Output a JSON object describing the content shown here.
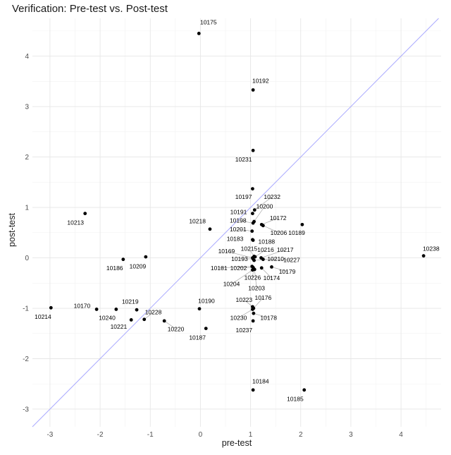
{
  "chart_data": {
    "type": "scatter",
    "title": "Verification: Pre-test vs. Post-test",
    "xlabel": "pre-test",
    "ylabel": "post-test",
    "xlim": [
      -3.35,
      4.8
    ],
    "ylim": [
      -3.35,
      4.75
    ],
    "xticks": [
      -3,
      -2,
      -1,
      0,
      1,
      2,
      3,
      4
    ],
    "yticks": [
      -3,
      -2,
      -1,
      0,
      1,
      2,
      3,
      4
    ],
    "grid": true,
    "reference_line": {
      "type": "identity",
      "color": "#aaaaff"
    },
    "point_color": "#000000",
    "points": [
      {
        "label": "10175",
        "x": -0.03,
        "y": 4.45
      },
      {
        "label": "10192",
        "x": 1.05,
        "y": 3.33
      },
      {
        "label": "10231",
        "x": 1.05,
        "y": 2.13
      },
      {
        "label": "10197",
        "x": 1.04,
        "y": 1.37
      },
      {
        "label": "10232",
        "x": 1.08,
        "y": 0.95
      },
      {
        "label": "10191",
        "x": 1.04,
        "y": 0.88
      },
      {
        "label": "10213",
        "x": -2.3,
        "y": 0.88
      },
      {
        "label": "10200",
        "x": 1.07,
        "y": 0.72
      },
      {
        "label": "10198",
        "x": 1.05,
        "y": 0.69
      },
      {
        "label": "10189",
        "x": 2.03,
        "y": 0.66
      },
      {
        "label": "10172",
        "x": 1.22,
        "y": 0.66
      },
      {
        "label": "10206",
        "x": 1.25,
        "y": 0.64
      },
      {
        "label": "10218",
        "x": 0.19,
        "y": 0.57
      },
      {
        "label": "10201",
        "x": 1.03,
        "y": 0.53
      },
      {
        "label": "10183",
        "x": 1.04,
        "y": 0.36
      },
      {
        "label": "10188",
        "x": 1.05,
        "y": 0.35
      },
      {
        "label": "10238",
        "x": 4.45,
        "y": 0.04
      },
      {
        "label": "10209",
        "x": -1.09,
        "y": 0.02
      },
      {
        "label": "10186",
        "x": -1.54,
        "y": -0.03
      },
      {
        "label": "10215",
        "x": 1.07,
        "y": 0.03
      },
      {
        "label": "10216",
        "x": 1.09,
        "y": 0.02
      },
      {
        "label": "10217",
        "x": 1.21,
        "y": 0.0
      },
      {
        "label": "10169",
        "x": 1.04,
        "y": 0.0
      },
      {
        "label": "10193",
        "x": 1.05,
        "y": -0.02
      },
      {
        "label": "10227",
        "x": 1.25,
        "y": -0.03
      },
      {
        "label": "10210",
        "x": 1.07,
        "y": -0.05
      },
      {
        "label": "10181",
        "x": 1.03,
        "y": -0.17
      },
      {
        "label": "10202",
        "x": 1.05,
        "y": -0.19
      },
      {
        "label": "10179",
        "x": 1.42,
        "y": -0.18
      },
      {
        "label": "10174",
        "x": 1.22,
        "y": -0.2
      },
      {
        "label": "10226",
        "x": 1.06,
        "y": -0.21
      },
      {
        "label": "10203",
        "x": 1.08,
        "y": -0.23
      },
      {
        "label": "10204",
        "x": 1.04,
        "y": -0.24
      },
      {
        "label": "10214",
        "x": -2.98,
        "y": -0.99
      },
      {
        "label": "10170",
        "x": -2.07,
        "y": -1.02
      },
      {
        "label": "10240",
        "x": -1.68,
        "y": -1.02
      },
      {
        "label": "10219",
        "x": -1.27,
        "y": -1.03
      },
      {
        "label": "10190",
        "x": -0.02,
        "y": -1.01
      },
      {
        "label": "10223",
        "x": 1.04,
        "y": -0.97
      },
      {
        "label": "10176",
        "x": 1.06,
        "y": -1.0
      },
      {
        "label": "10230",
        "x": 1.04,
        "y": -1.02
      },
      {
        "label": "10178",
        "x": 1.06,
        "y": -1.1
      },
      {
        "label": "10228",
        "x": -1.12,
        "y": -1.22
      },
      {
        "label": "10221",
        "x": -1.38,
        "y": -1.23
      },
      {
        "label": "10220",
        "x": -0.72,
        "y": -1.25
      },
      {
        "label": "10237",
        "x": 1.05,
        "y": -1.25
      },
      {
        "label": "10187",
        "x": 0.11,
        "y": -1.4
      },
      {
        "label": "10184",
        "x": 1.05,
        "y": -2.62
      },
      {
        "label": "10185",
        "x": 2.07,
        "y": -2.62
      }
    ],
    "point_labels": [
      {
        "label": "10175",
        "lx": 0.16,
        "ly": 4.67,
        "leader": false
      },
      {
        "label": "10192",
        "lx": 1.2,
        "ly": 3.51,
        "leader": false
      },
      {
        "label": "10231",
        "lx": 0.86,
        "ly": 1.95,
        "leader": false
      },
      {
        "label": "10197",
        "lx": 0.86,
        "ly": 1.21,
        "leader": false
      },
      {
        "label": "10232",
        "lx": 1.43,
        "ly": 1.21,
        "leader": true
      },
      {
        "label": "10200",
        "lx": 1.28,
        "ly": 1.02,
        "leader": true
      },
      {
        "label": "10191",
        "lx": 0.76,
        "ly": 0.91,
        "leader": false
      },
      {
        "label": "10172",
        "lx": 1.55,
        "ly": 0.79,
        "leader": true
      },
      {
        "label": "10198",
        "lx": 0.75,
        "ly": 0.74,
        "leader": true
      },
      {
        "label": "10218",
        "lx": -0.06,
        "ly": 0.73,
        "leader": false
      },
      {
        "label": "10213",
        "lx": -2.49,
        "ly": 0.7,
        "leader": false
      },
      {
        "label": "10201",
        "lx": 0.75,
        "ly": 0.57,
        "leader": true
      },
      {
        "label": "10206",
        "lx": 1.56,
        "ly": 0.5,
        "leader": true
      },
      {
        "label": "10189",
        "lx": 1.92,
        "ly": 0.5,
        "leader": false
      },
      {
        "label": "10183",
        "lx": 0.69,
        "ly": 0.38,
        "leader": false
      },
      {
        "label": "10188",
        "lx": 1.32,
        "ly": 0.32,
        "leader": false
      },
      {
        "label": "10238",
        "lx": 4.6,
        "ly": 0.18,
        "leader": false
      },
      {
        "label": "10215",
        "lx": 0.97,
        "ly": 0.18,
        "leader": true
      },
      {
        "label": "10216",
        "lx": 1.3,
        "ly": 0.16,
        "leader": true
      },
      {
        "label": "10217",
        "lx": 1.69,
        "ly": 0.16,
        "leader": true
      },
      {
        "label": "10169",
        "lx": 0.52,
        "ly": 0.13,
        "leader": true
      },
      {
        "label": "10193",
        "lx": 0.78,
        "ly": -0.02,
        "leader": true
      },
      {
        "label": "10210",
        "lx": 1.5,
        "ly": -0.02,
        "leader": true
      },
      {
        "label": "10227",
        "lx": 1.82,
        "ly": -0.04,
        "leader": true
      },
      {
        "label": "10209",
        "lx": -1.25,
        "ly": -0.17,
        "leader": false
      },
      {
        "label": "10186",
        "lx": -1.71,
        "ly": -0.2,
        "leader": false
      },
      {
        "label": "10181",
        "lx": 0.37,
        "ly": -0.2,
        "leader": true
      },
      {
        "label": "10202",
        "lx": 0.76,
        "ly": -0.2,
        "leader": true
      },
      {
        "label": "10179",
        "lx": 1.73,
        "ly": -0.27,
        "leader": true
      },
      {
        "label": "10226",
        "lx": 1.04,
        "ly": -0.39,
        "leader": true
      },
      {
        "label": "10174",
        "lx": 1.42,
        "ly": -0.4,
        "leader": true
      },
      {
        "label": "10204",
        "lx": 0.62,
        "ly": -0.52,
        "leader": true
      },
      {
        "label": "10203",
        "lx": 1.12,
        "ly": -0.6,
        "leader": true
      },
      {
        "label": "10223",
        "lx": 0.87,
        "ly": -0.83,
        "leader": true
      },
      {
        "label": "10176",
        "lx": 1.25,
        "ly": -0.79,
        "leader": true
      },
      {
        "label": "10219",
        "lx": -1.4,
        "ly": -0.87,
        "leader": false
      },
      {
        "label": "10190",
        "lx": 0.12,
        "ly": -0.85,
        "leader": false
      },
      {
        "label": "10170",
        "lx": -2.36,
        "ly": -0.95,
        "leader": false
      },
      {
        "label": "10228",
        "lx": -0.94,
        "ly": -1.08,
        "leader": true
      },
      {
        "label": "10214",
        "lx": -3.14,
        "ly": -1.17,
        "leader": false
      },
      {
        "label": "10240",
        "lx": -1.86,
        "ly": -1.19,
        "leader": false
      },
      {
        "label": "10230",
        "lx": 0.76,
        "ly": -1.19,
        "leader": true
      },
      {
        "label": "10178",
        "lx": 1.36,
        "ly": -1.19,
        "leader": true
      },
      {
        "label": "10221",
        "lx": -1.63,
        "ly": -1.36,
        "leader": false
      },
      {
        "label": "10220",
        "lx": -0.49,
        "ly": -1.41,
        "leader": true
      },
      {
        "label": "10237",
        "lx": 0.87,
        "ly": -1.43,
        "leader": false
      },
      {
        "label": "10187",
        "lx": -0.06,
        "ly": -1.58,
        "leader": false
      },
      {
        "label": "10184",
        "lx": 1.2,
        "ly": -2.45,
        "leader": false
      },
      {
        "label": "10185",
        "lx": 1.89,
        "ly": -2.8,
        "leader": false
      }
    ]
  }
}
